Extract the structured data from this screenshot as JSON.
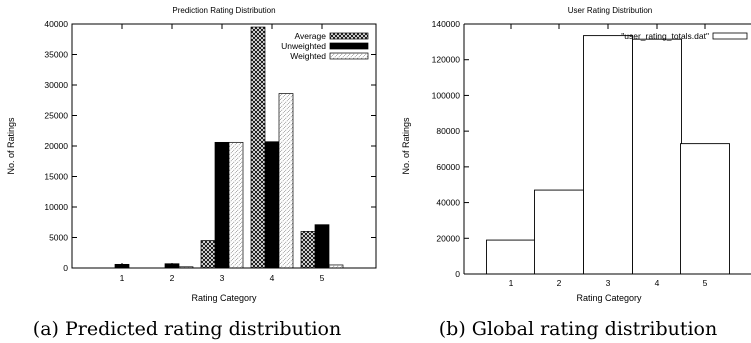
{
  "chart_data": [
    {
      "type": "bar",
      "title": "Prediction Rating Distribution",
      "xlabel": "Rating Category",
      "ylabel": "No. of Ratings",
      "categories": [
        "1",
        "2",
        "3",
        "4",
        "5"
      ],
      "ylim": [
        0,
        40000
      ],
      "yticks": [
        0,
        5000,
        10000,
        15000,
        20000,
        25000,
        30000,
        35000,
        40000
      ],
      "series": [
        {
          "name": "Average",
          "values": [
            0,
            0,
            4500,
            39500,
            6000
          ],
          "pattern": "crosshatch"
        },
        {
          "name": "Unweighted",
          "values": [
            600,
            700,
            20600,
            20700,
            7100
          ],
          "pattern": "solid"
        },
        {
          "name": "Weighted",
          "values": [
            0,
            200,
            20600,
            28600,
            500
          ],
          "pattern": "dotted"
        }
      ],
      "legend_position": "top-right",
      "caption": "(a) Predicted rating distribution"
    },
    {
      "type": "bar",
      "title": "User Rating Distribution",
      "xlabel": "Rating Category",
      "ylabel": "No. of Ratings",
      "categories": [
        "1",
        "2",
        "3",
        "4",
        "5"
      ],
      "ylim": [
        0,
        140000
      ],
      "yticks": [
        0,
        20000,
        40000,
        60000,
        80000,
        100000,
        120000,
        140000
      ],
      "series": [
        {
          "name": "\"user_rating_totals.dat\"",
          "values": [
            19000,
            47000,
            133500,
            131500,
            73000
          ],
          "pattern": "empty"
        }
      ],
      "legend_position": "top-right",
      "caption": "(b) Global rating distribution"
    }
  ]
}
